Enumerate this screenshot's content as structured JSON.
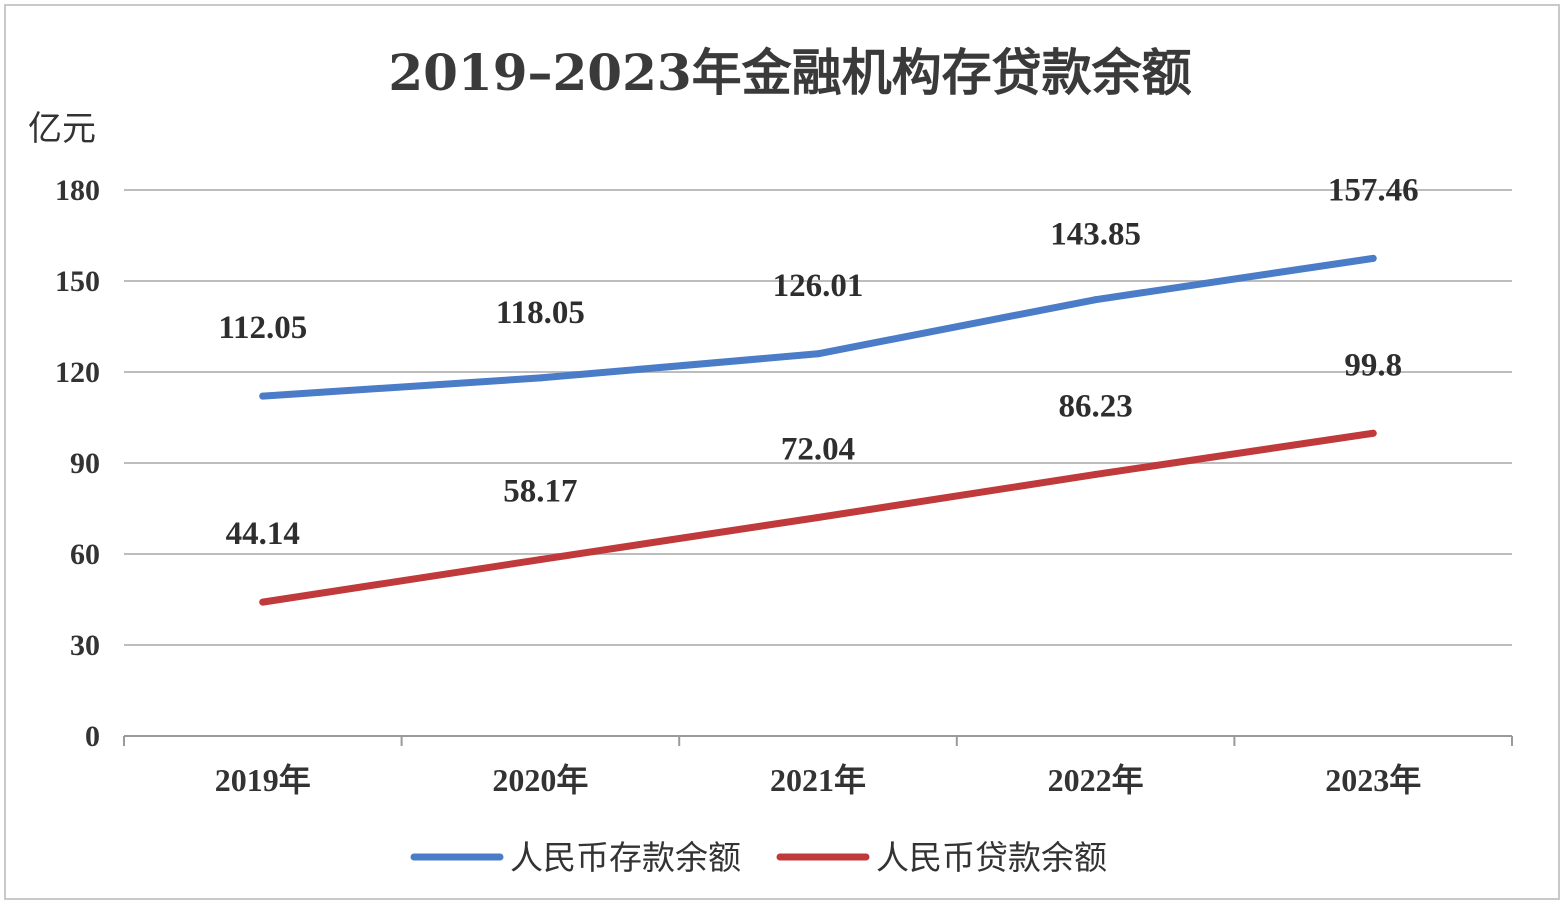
{
  "chart_data": {
    "type": "line",
    "title": "2019–2023年金融机构存贷款余额",
    "ylabel": "亿元",
    "xlabel": "",
    "categories": [
      "2019年",
      "2020年",
      "2021年",
      "2022年",
      "2023年"
    ],
    "ylim": [
      0,
      180
    ],
    "yticks": [
      0,
      30,
      60,
      90,
      120,
      150,
      180
    ],
    "grid": true,
    "legend_position": "bottom",
    "series": [
      {
        "name": "人民币存款余额",
        "color": "#4a7cc7",
        "values": [
          112.05,
          118.05,
          126.01,
          143.85,
          157.46
        ],
        "labels": [
          "112.05",
          "118.05",
          "126.01",
          "143.85",
          "157.46"
        ]
      },
      {
        "name": "人民币贷款余额",
        "color": "#c0393b",
        "values": [
          44.14,
          58.17,
          72.04,
          86.23,
          99.8
        ],
        "labels": [
          "44.14",
          "58.17",
          "72.04",
          "86.23",
          "99.8"
        ]
      }
    ]
  }
}
